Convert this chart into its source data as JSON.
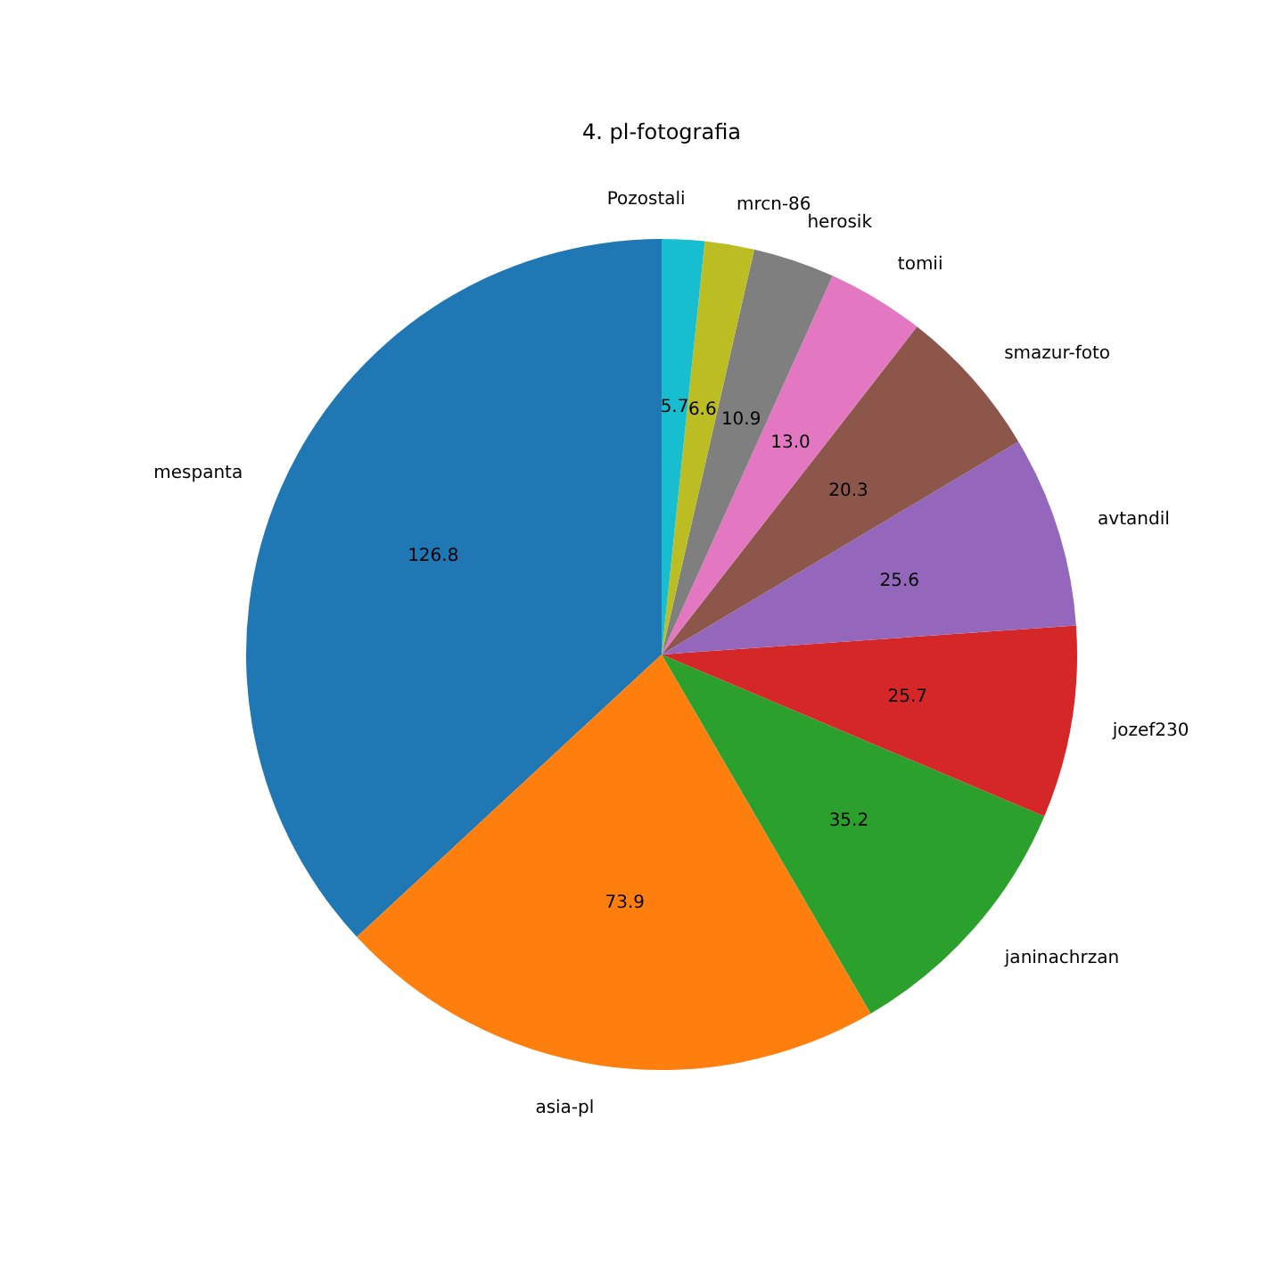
{
  "chart_data": {
    "type": "pie",
    "title": "4. pl-fotografia",
    "categories": [
      "mespanta",
      "asia-pl",
      "janinachrzan",
      "jozef230",
      "avtandil",
      "smazur-foto",
      "tomii",
      "herosik",
      "mrcn-86",
      "Pozostali"
    ],
    "values": [
      126.8,
      73.9,
      35.2,
      25.7,
      25.6,
      20.3,
      13.0,
      10.9,
      6.6,
      5.7
    ],
    "colors": [
      "#1f77b4",
      "#ff7f0e",
      "#2ca02c",
      "#d62728",
      "#9467bd",
      "#8c564b",
      "#e377c2",
      "#7f7f7f",
      "#bcbd22",
      "#17becf"
    ],
    "value_labels": [
      "126.8",
      "73.9",
      "35.2",
      "25.7",
      "25.6",
      "20.3",
      "13.0",
      "10.9",
      "6.6",
      "5.7"
    ]
  }
}
